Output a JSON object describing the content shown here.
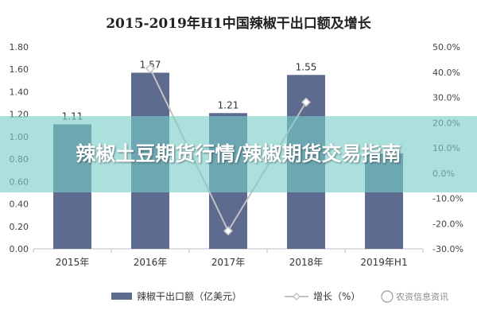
{
  "overlay_title": "辣椒土豆期货行情/辣椒期货交易指南",
  "watermark": "农资信息资讯",
  "colors": {
    "bar": "#5c6b8e",
    "line": "#c3c3c3",
    "marker_fill": "#ffffff",
    "background": "#ffffff",
    "overlay": "#7ccdc8"
  },
  "chart_data": {
    "type": "bar",
    "title": "2015-2019年H1中国辣椒干出口额及增长",
    "categories": [
      "2015年",
      "2016年",
      "2017年",
      "2018年",
      "2019年H1"
    ],
    "series": [
      {
        "name": "辣椒干出口额（亿美元）",
        "type": "bar",
        "axis": "left",
        "values": [
          1.11,
          1.57,
          1.21,
          1.55,
          0.85
        ],
        "labels": [
          "1.11",
          "1.57",
          "1.21",
          "1.55",
          ""
        ]
      },
      {
        "name": "增长（%）",
        "type": "line",
        "axis": "right",
        "values": [
          null,
          41.4,
          -22.9,
          28.1,
          null
        ]
      }
    ],
    "y_left": {
      "ylim": [
        0,
        1.8
      ],
      "ticks": [
        "0.00",
        "0.20",
        "0.40",
        "0.60",
        "0.80",
        "1.00",
        "1.20",
        "1.40",
        "1.60",
        "1.80"
      ]
    },
    "y_right": {
      "ylim": [
        -30,
        50
      ],
      "ticks": [
        "-30.0%",
        "-20.0%",
        "-10.0%",
        "0.0%",
        "10.0%",
        "20.0%",
        "30.0%",
        "40.0%",
        "50.0%"
      ]
    },
    "grid": false,
    "legend": "bottom"
  }
}
